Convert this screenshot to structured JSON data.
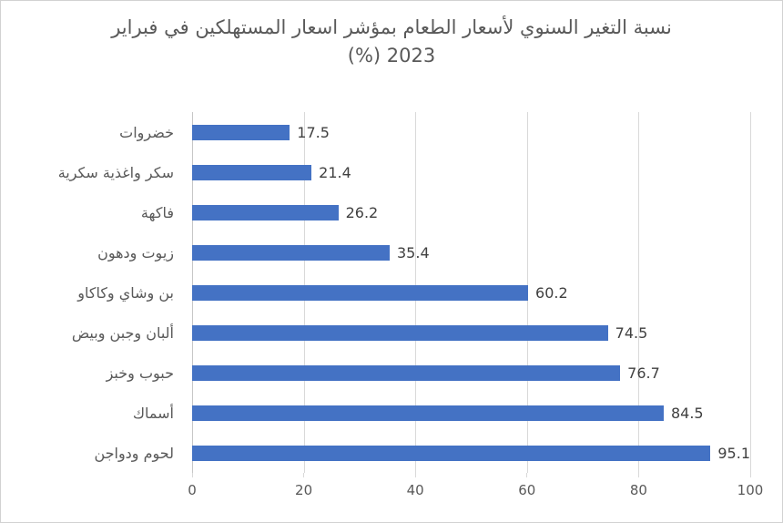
{
  "frame": {
    "background": "#ffffff",
    "border_color": "#d2d2d2"
  },
  "title": {
    "line1": "نسبة التغير السنوي لأسعار الطعام بمؤشر اسعار المستهلكين في فبراير",
    "line2": "2023 (%)",
    "color": "#595959"
  },
  "chart_data": {
    "type": "bar",
    "orientation": "horizontal",
    "title": "نسبة التغير السنوي لأسعار الطعام بمؤشر اسعار المستهلكين في فبراير 2023 (%)",
    "categories": [
      "خضروات",
      "سكر واغذية سكرية",
      "فاكهة",
      "زيوت ودهون",
      "بن وشاي وكاكاو",
      "ألبان وجبن وبيض",
      "حبوب وخبز",
      "أسماك",
      "لحوم ودواجن"
    ],
    "values": [
      17.5,
      21.4,
      26.2,
      35.4,
      60.2,
      74.5,
      76.7,
      84.5,
      95.1
    ],
    "value_labels": [
      "17.5",
      "21.4",
      "26.2",
      "35.4",
      "60.2",
      "74.5",
      "76.7",
      "84.5",
      "95.1"
    ],
    "x_axis": {
      "min": 0,
      "max": 100,
      "ticks": [
        "0",
        "20",
        "40",
        "60",
        "80",
        "100"
      ]
    },
    "bar_color": "#4472c4",
    "gridline_color": "#d9d9d9",
    "axis_line_color": "#c6c6c6",
    "category_label_color": "#595959",
    "data_label_color": "#404040",
    "grid": "vertical-only",
    "legend": "none"
  }
}
